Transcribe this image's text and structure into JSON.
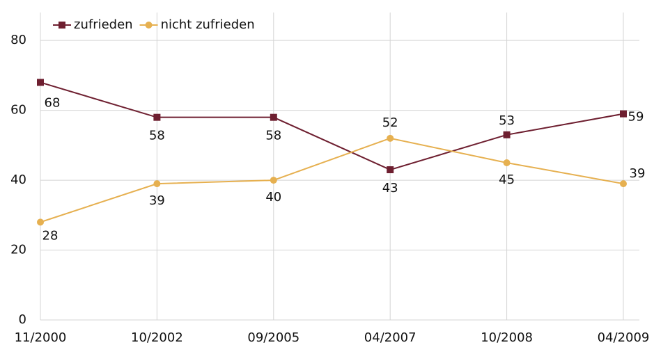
{
  "chart_data": {
    "type": "line",
    "categories": [
      "11/2000",
      "10/2002",
      "09/2005",
      "04/2007",
      "10/2008",
      "04/2009"
    ],
    "series": [
      {
        "name": "zufrieden",
        "color": "#6e1f30",
        "marker": "square",
        "values": [
          68,
          58,
          58,
          43,
          53,
          59
        ]
      },
      {
        "name": "nicht zufrieden",
        "color": "#e6b050",
        "marker": "circle",
        "values": [
          28,
          39,
          40,
          52,
          45,
          39
        ]
      }
    ],
    "ylim": [
      0,
      88
    ],
    "yticks": [
      0,
      20,
      40,
      60,
      80
    ],
    "grid": true,
    "legend": "top-left"
  }
}
